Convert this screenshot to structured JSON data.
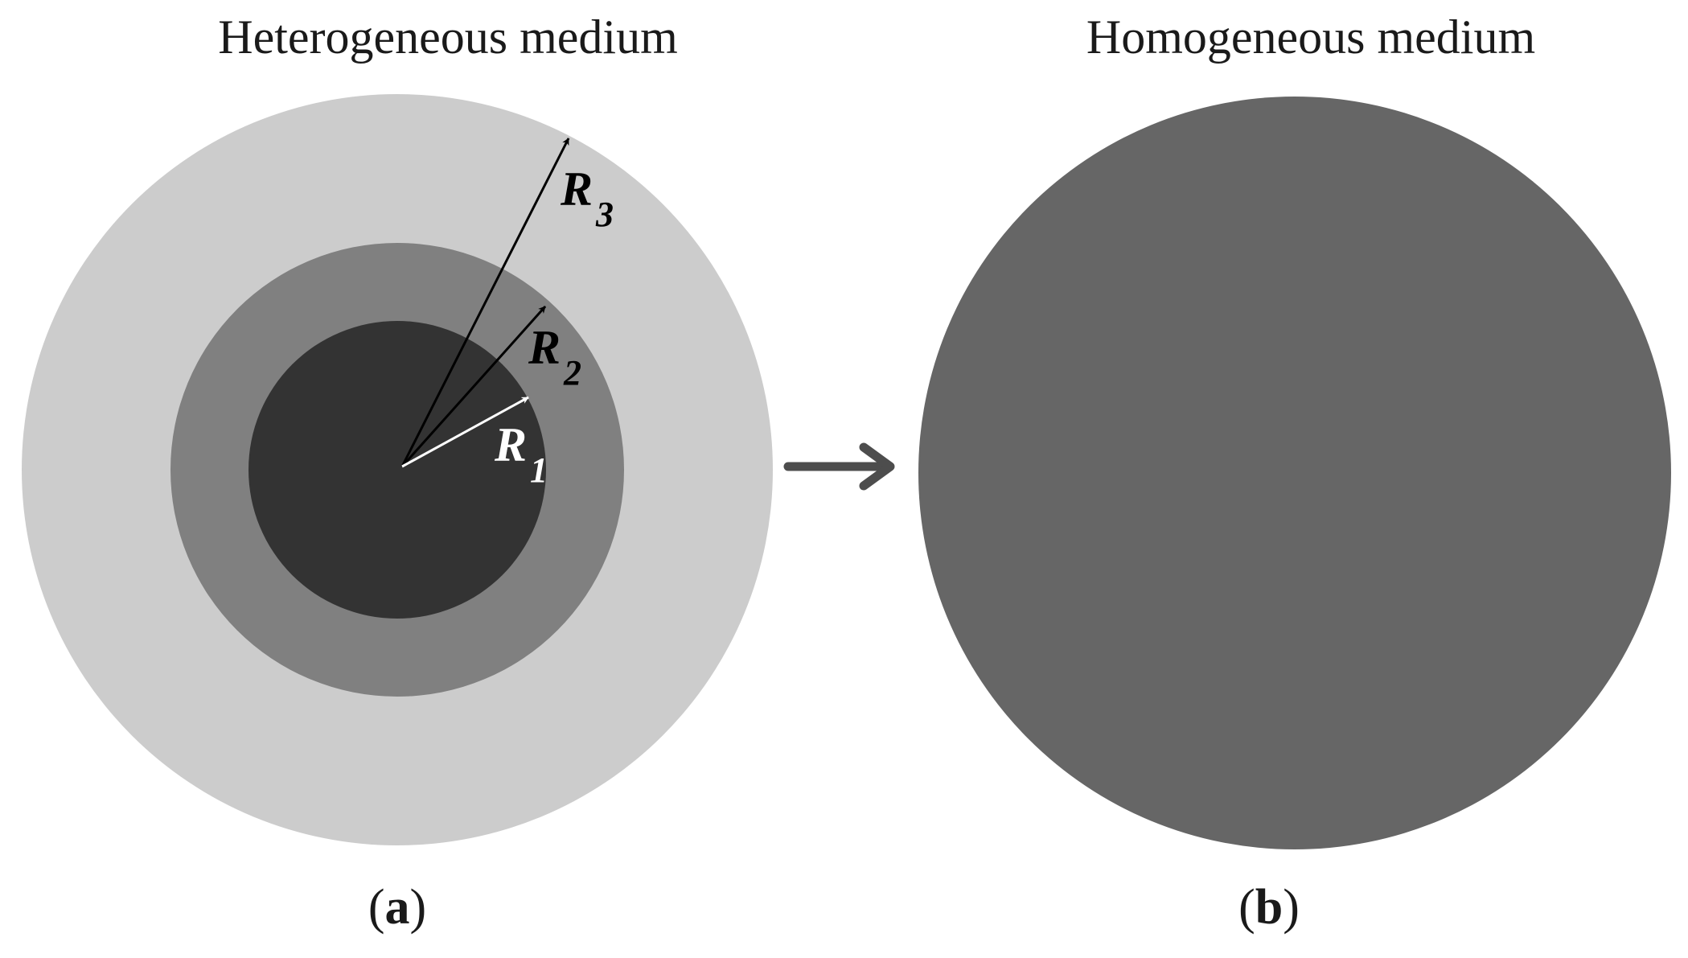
{
  "panels": {
    "a": {
      "title": "Heterogeneous medium",
      "label_open": "(",
      "label_letter": "a",
      "label_close": ")",
      "radii": [
        {
          "name": "R",
          "sub": "1"
        },
        {
          "name": "R",
          "sub": "2"
        },
        {
          "name": "R",
          "sub": "3"
        }
      ]
    },
    "b": {
      "title": "Homogeneous medium",
      "label_open": "(",
      "label_letter": "b",
      "label_close": ")"
    }
  },
  "colors": {
    "outer_layer": "#cccccc",
    "middle_layer": "#808080",
    "inner_core": "#333333",
    "homogeneous": "#666666",
    "arrow": "#4d4d4d",
    "radius_arrow_dark": "#000000",
    "radius_arrow_light": "#ffffff"
  }
}
